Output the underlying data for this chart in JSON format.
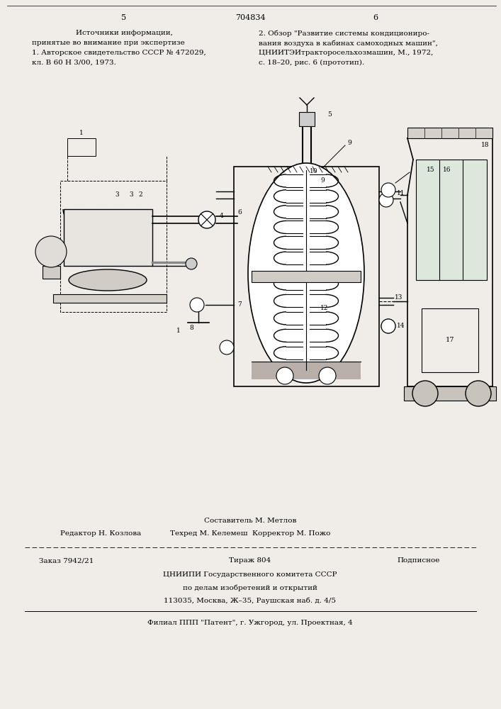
{
  "bg_color": "#f0ede8",
  "page_width": 7.07,
  "page_height": 10.0,
  "header": {
    "page_left": "5",
    "patent_num": "704834",
    "page_right": "6"
  },
  "left_col_title": "Источники информации,",
  "left_col_line2": "принятые во внимание при экспертизе",
  "left_col_line3": "1. Авторское свидетельство СССР № 472029,",
  "left_col_line4": "кл. В 60 Н 3/00, 1973.",
  "right_col_text_line1": "2. Обзор \"Развитие системы кондициониро-",
  "right_col_text_line2": "вания воздуха в кабинах самоходных машин\",",
  "right_col_text_line3": "ЦНИИТЭИтракторосельхозмашин, М., 1972,",
  "right_col_text_line4": "с. 18–20, рис. 6 (прототип).",
  "footer_line1_left": "Редактор Н. Козлова",
  "footer_line1_center": "Составитель М. Метлов",
  "footer_line2_center": "Техред М. Келемеш  Корректор М. Пожо",
  "footer_order_left": "Заказ 7942/21",
  "footer_order_center": "Тираж 804",
  "footer_order_right": "Подписное",
  "footer_org": "ЦНИИПИ Государственного комитета СССР",
  "footer_org2": "по делам изобретений и открытий",
  "footer_addr": "113035, Москва, Ж–35, Раушская наб. д. 4/5",
  "footer_branch": "Филиал ППП \"Патент\", г. Ужгород, ул. Проектная, 4"
}
